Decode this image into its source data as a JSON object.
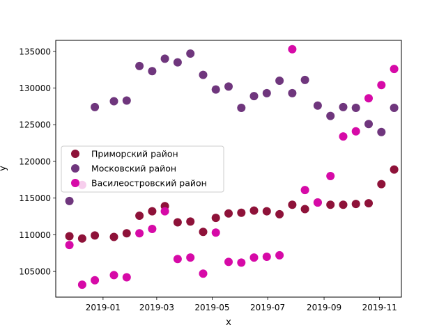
{
  "chart_data": {
    "type": "scatter",
    "title": "",
    "xlabel": "x",
    "ylabel": "y",
    "xlim": [
      "2018-11-10",
      "2019-11-25"
    ],
    "ylim": [
      101500,
      136500
    ],
    "grid": false,
    "legend_position": "center-left",
    "x_ticks": [
      "2019-01",
      "2019-03",
      "2019-05",
      "2019-07",
      "2019-09",
      "2019-11"
    ],
    "y_ticks": [
      105000,
      110000,
      115000,
      120000,
      125000,
      130000,
      135000
    ],
    "x": [
      "2018-11-25",
      "2018-12-09",
      "2018-12-23",
      "2019-01-13",
      "2019-01-27",
      "2019-02-10",
      "2019-02-24",
      "2019-03-10",
      "2019-03-24",
      "2019-04-07",
      "2019-04-21",
      "2019-05-05",
      "2019-05-19",
      "2019-06-02",
      "2019-06-16",
      "2019-06-30",
      "2019-07-14",
      "2019-07-28",
      "2019-08-11",
      "2019-08-25",
      "2019-09-08",
      "2019-09-22",
      "2019-10-06",
      "2019-10-20",
      "2019-11-03",
      "2019-11-17"
    ],
    "series": [
      {
        "name": "Приморский район",
        "color": "#8e1239",
        "x": [
          "2018-11-25",
          "2018-12-09",
          "2018-12-23",
          "2019-01-13",
          "2019-01-27",
          "2019-02-10",
          "2019-02-24",
          "2019-03-10",
          "2019-03-24",
          "2019-04-07",
          "2019-04-21",
          "2019-05-05",
          "2019-05-19",
          "2019-06-02",
          "2019-06-16",
          "2019-06-30",
          "2019-07-14",
          "2019-07-28",
          "2019-08-11",
          "2019-08-25",
          "2019-09-08",
          "2019-09-22",
          "2019-10-06",
          "2019-10-20",
          "2019-11-03",
          "2019-11-17"
        ],
        "values": [
          109800,
          109500,
          109900,
          109700,
          110200,
          112600,
          113200,
          113900,
          111700,
          111800,
          110400,
          112300,
          112900,
          113000,
          113300,
          113200,
          112800,
          114100,
          113500,
          114400,
          114100,
          114100,
          114200,
          114300,
          116900,
          118900
        ]
      },
      {
        "name": "Московский район",
        "color": "#6f367d",
        "x": [
          "2018-11-25",
          "2018-12-23",
          "2019-01-13",
          "2019-01-27",
          "2019-02-10",
          "2019-02-24",
          "2019-03-10",
          "2019-03-24",
          "2019-04-07",
          "2019-04-21",
          "2019-05-05",
          "2019-05-19",
          "2019-06-02",
          "2019-06-16",
          "2019-06-30",
          "2019-07-14",
          "2019-07-28",
          "2019-08-11",
          "2019-08-25",
          "2019-09-08",
          "2019-09-22",
          "2019-10-06",
          "2019-10-20",
          "2019-11-03",
          "2019-11-17"
        ],
        "values": [
          114600,
          127400,
          128200,
          128300,
          133000,
          132300,
          134000,
          133500,
          134700,
          131800,
          129800,
          130200,
          127300,
          128900,
          129300,
          131000,
          129300,
          131100,
          127600,
          126200,
          127400,
          127300,
          125100,
          124000,
          127300
        ]
      },
      {
        "name": "Василеостровский район",
        "color": "#d60aa7",
        "x": [
          "2018-11-25",
          "2018-12-09",
          "2018-12-09",
          "2018-12-23",
          "2019-01-13",
          "2019-01-27",
          "2019-02-10",
          "2019-02-24",
          "2019-03-10",
          "2019-03-24",
          "2019-04-07",
          "2019-04-21",
          "2019-05-05",
          "2019-05-19",
          "2019-06-02",
          "2019-06-16",
          "2019-06-30",
          "2019-07-14",
          "2019-07-28",
          "2019-08-11",
          "2019-08-25",
          "2019-09-08",
          "2019-09-22",
          "2019-10-06",
          "2019-10-20",
          "2019-11-03",
          "2019-11-17"
        ],
        "values": [
          108600,
          116800,
          103200,
          103800,
          104500,
          104200,
          110200,
          110800,
          113200,
          106700,
          106900,
          104700,
          110300,
          106300,
          106200,
          106900,
          107000,
          107200,
          135300,
          116100,
          114400,
          118000,
          123400,
          124100,
          128600,
          130400,
          132600
        ]
      }
    ]
  }
}
